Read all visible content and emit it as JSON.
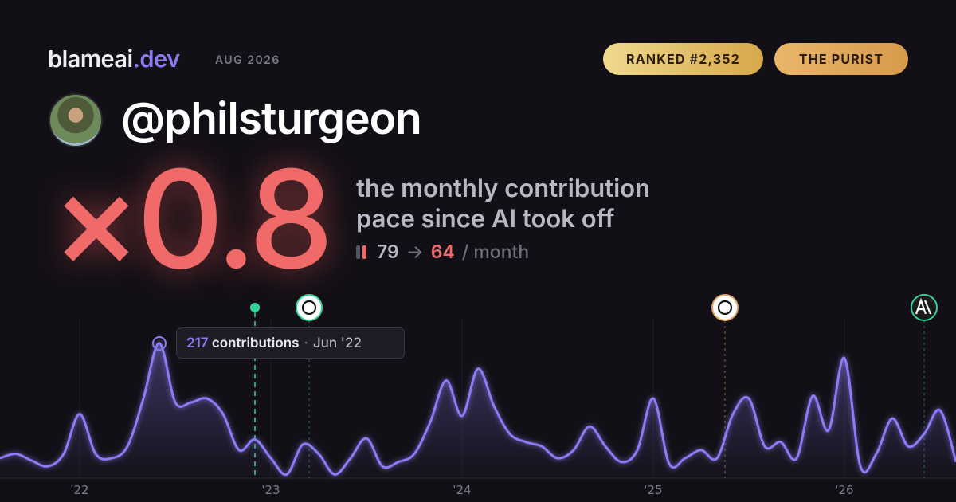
{
  "header": {
    "brand": "blameai",
    "brand_tld": ".dev",
    "period": "AUG 2026",
    "rank_badge": "RANKED #2,352",
    "persona_badge": "THE PURIST",
    "handle": "@philsturgeon"
  },
  "headline": {
    "multiplier": "×0.8",
    "line1": "the monthly contribution",
    "line2": "pace since AI took off",
    "before": 79,
    "arrow": "→",
    "after": 64,
    "unit": "/ month"
  },
  "chart_data": {
    "type": "line",
    "color": "#8b7cf6",
    "categories": [
      null,
      null,
      null,
      null,
      null,
      "'22",
      null,
      null,
      null,
      null,
      null,
      null,
      null,
      null,
      null,
      null,
      null,
      "'23",
      null,
      null,
      null,
      null,
      null,
      null,
      null,
      null,
      null,
      null,
      null,
      "'24",
      null,
      null,
      null,
      null,
      null,
      null,
      null,
      null,
      null,
      null,
      null,
      "'25",
      null,
      null,
      null,
      null,
      null,
      null,
      null,
      null,
      null,
      null,
      null,
      "'26",
      null,
      null,
      null,
      null,
      null,
      null,
      null
    ],
    "values": [
      32,
      39,
      28,
      19,
      39,
      103,
      39,
      32,
      51,
      128,
      217,
      122,
      122,
      128,
      103,
      45,
      62,
      32,
      6,
      54,
      39,
      6,
      32,
      64,
      19,
      26,
      39,
      90,
      157,
      100,
      176,
      116,
      71,
      58,
      51,
      32,
      45,
      83,
      51,
      26,
      45,
      128,
      23,
      32,
      45,
      32,
      103,
      128,
      51,
      58,
      32,
      132,
      77,
      193,
      19,
      39,
      96,
      51,
      71,
      109,
      26
    ],
    "ylim": [
      0,
      250
    ],
    "tooltip": {
      "unit": "contributions",
      "separator": "·",
      "date": "Jun '22"
    }
  }
}
